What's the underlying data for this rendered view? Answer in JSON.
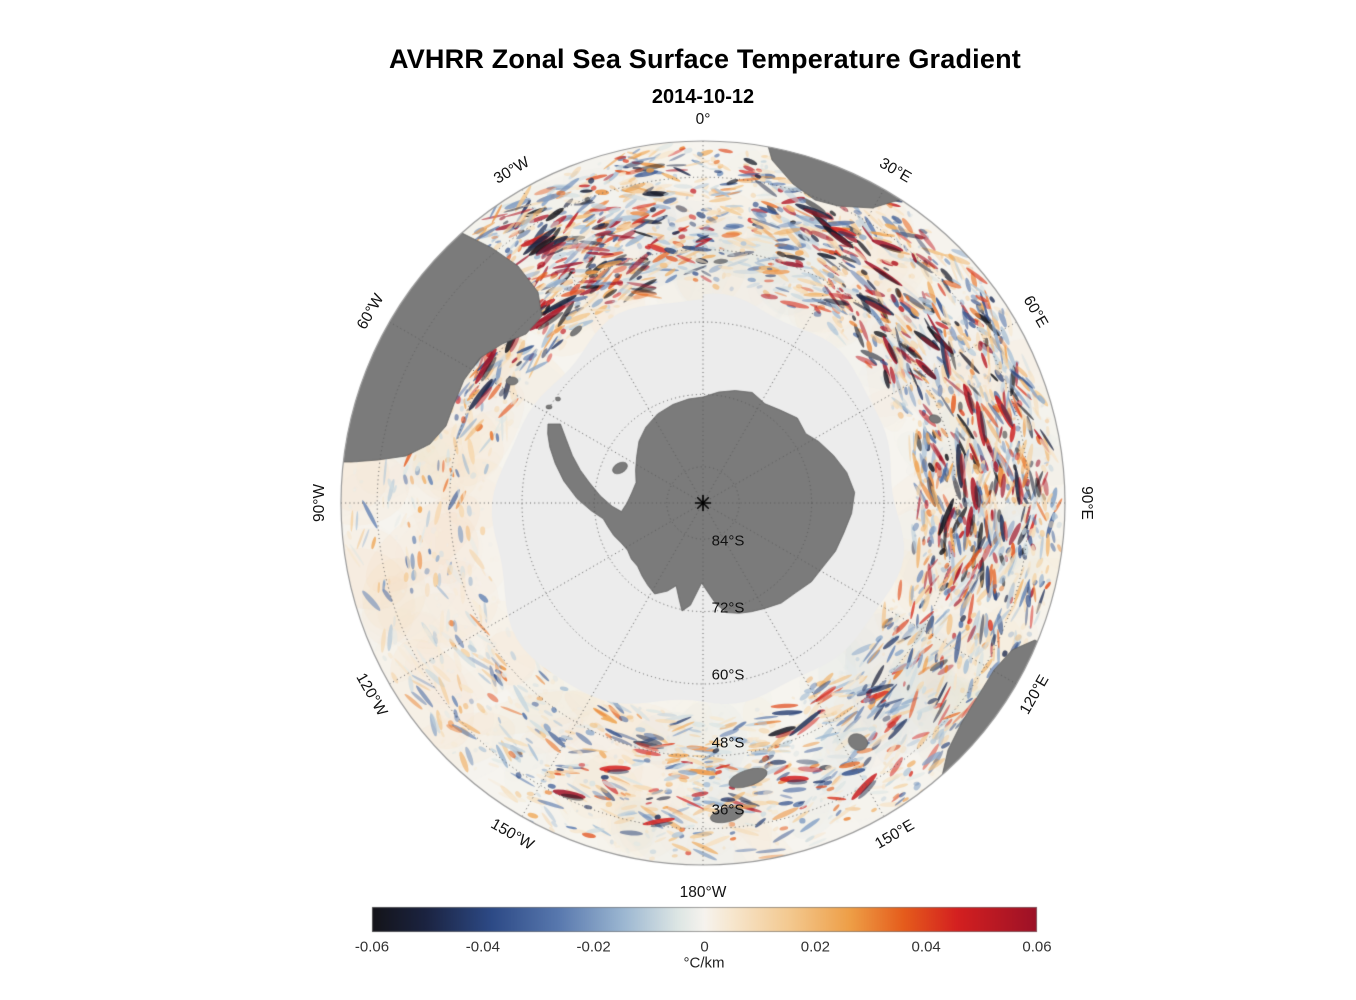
{
  "title": "AVHRR Zonal Sea Surface Temperature Gradient",
  "subtitle": "2014-10-12",
  "map": {
    "land_color": "#7b7b7b",
    "land_edge_color": "#5a5a5a",
    "ice_color": "#ececec",
    "ocean_base_color": "#f6f4ef",
    "grid_color": "#5c5c5c",
    "rim_color": "#9a9a9a"
  },
  "chart_data": {
    "type": "heatmap",
    "title": "AVHRR Zonal Sea Surface Temperature Gradient",
    "date": "2014-10-12",
    "projection": "south-polar-stereographic",
    "pole": "South",
    "rim_latitude_deg": -30,
    "units": "°C/km",
    "value_range": [
      -0.06,
      0.06
    ],
    "grid": "dotted graticule, meridians every 30°, parallels every 12°",
    "meridians": [
      {
        "label": "0°",
        "az": 0
      },
      {
        "label": "30°E",
        "az": 30
      },
      {
        "label": "60°E",
        "az": 60
      },
      {
        "label": "90°E",
        "az": 90
      },
      {
        "label": "120°E",
        "az": 120
      },
      {
        "label": "150°E",
        "az": 150
      },
      {
        "label": "180°W",
        "az": 180
      },
      {
        "label": "150°W",
        "az": 210
      },
      {
        "label": "120°W",
        "az": 240
      },
      {
        "label": "90°W",
        "az": 270
      },
      {
        "label": "60°W",
        "az": 300
      },
      {
        "label": "30°W",
        "az": 330
      }
    ],
    "parallels": [
      {
        "label": "84°S",
        "lat": 84
      },
      {
        "label": "72°S",
        "lat": 72
      },
      {
        "label": "60°S",
        "lat": 60
      },
      {
        "label": "48°S",
        "lat": 48
      },
      {
        "label": "36°S",
        "lat": 36
      }
    ],
    "colorbar": {
      "orientation": "horizontal",
      "position": "bottom",
      "min": -0.06,
      "max": 0.06,
      "ticks": [
        -0.06,
        -0.04,
        -0.02,
        0,
        0.02,
        0.04,
        0.06
      ],
      "tick_labels": [
        "-0.06",
        "-0.04",
        "-0.02",
        "0",
        "0.02",
        "0.04",
        "0.06"
      ],
      "label": "°C/km",
      "stops": [
        {
          "u": 0.0,
          "c": "#141419"
        },
        {
          "u": 0.08,
          "c": "#1b2340"
        },
        {
          "u": 0.18,
          "c": "#2d4a86"
        },
        {
          "u": 0.28,
          "c": "#5878ae"
        },
        {
          "u": 0.38,
          "c": "#9db8d2"
        },
        {
          "u": 0.46,
          "c": "#dde6e4"
        },
        {
          "u": 0.5,
          "c": "#f6f3ee"
        },
        {
          "u": 0.54,
          "c": "#f7e7cf"
        },
        {
          "u": 0.63,
          "c": "#f3c88e"
        },
        {
          "u": 0.72,
          "c": "#ee9e46"
        },
        {
          "u": 0.8,
          "c": "#e55c1c"
        },
        {
          "u": 0.88,
          "c": "#d42020"
        },
        {
          "u": 1.0,
          "c": "#9c1127"
        }
      ]
    }
  }
}
